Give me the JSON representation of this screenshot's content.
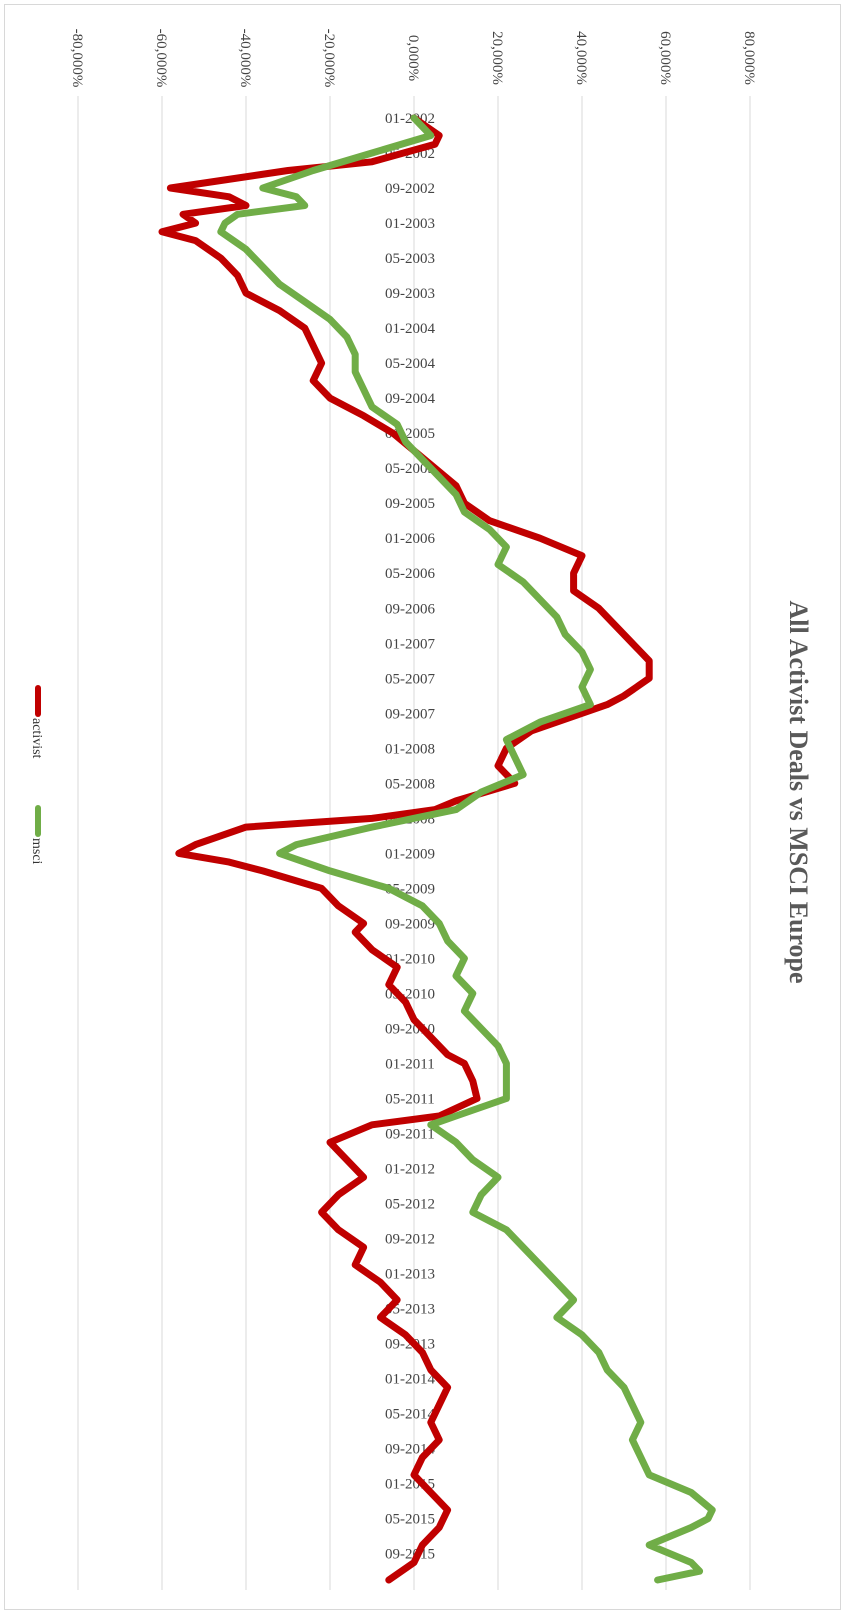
{
  "chart_data": {
    "type": "line",
    "title": "All Activist Deals vs MSCI Europe",
    "orientation": "rotated-90-clockwise",
    "value_axis": {
      "ticks": [
        "-80,000%",
        "-60,000%",
        "-40,000%",
        "-20,000%",
        "0,000%",
        "20,000%",
        "40,000%",
        "60,000%",
        "80,000%"
      ],
      "range": [
        -80,
        80
      ],
      "grid": true
    },
    "categories": [
      "01-2002",
      "05-2002",
      "09-2002",
      "01-2003",
      "05-2003",
      "09-2003",
      "01-2004",
      "05-2004",
      "09-2004",
      "01-2005",
      "05-2005",
      "09-2005",
      "01-2006",
      "05-2006",
      "09-2006",
      "01-2007",
      "05-2007",
      "09-2007",
      "01-2008",
      "05-2008",
      "09-2008",
      "01-2009",
      "05-2009",
      "09-2009",
      "01-2010",
      "05-2010",
      "09-2010",
      "01-2011",
      "05-2011",
      "09-2011",
      "01-2012",
      "05-2012",
      "09-2012",
      "01-2013",
      "05-2013",
      "09-2013",
      "01-2014",
      "05-2014",
      "09-2014",
      "01-2015",
      "05-2015",
      "09-2015"
    ],
    "x_range": [
      "01-2002",
      "12-2015"
    ],
    "legend": {
      "position": "bottom-center"
    },
    "series": [
      {
        "name": "activist",
        "color": "#c00000",
        "points": [
          [
            "01-2002",
            0
          ],
          [
            "03-2002",
            6
          ],
          [
            "04-2002",
            5
          ],
          [
            "06-2002",
            -10
          ],
          [
            "07-2002",
            -30
          ],
          [
            "09-2002",
            -58
          ],
          [
            "10-2002",
            -44
          ],
          [
            "11-2002",
            -40
          ],
          [
            "12-2002",
            -55
          ],
          [
            "01-2003",
            -52
          ],
          [
            "02-2003",
            -60
          ],
          [
            "03-2003",
            -52
          ],
          [
            "05-2003",
            -46
          ],
          [
            "07-2003",
            -42
          ],
          [
            "09-2003",
            -40
          ],
          [
            "11-2003",
            -32
          ],
          [
            "01-2004",
            -26
          ],
          [
            "03-2004",
            -24
          ],
          [
            "05-2004",
            -22
          ],
          [
            "07-2004",
            -24
          ],
          [
            "09-2004",
            -20
          ],
          [
            "11-2004",
            -12
          ],
          [
            "01-2005",
            -5
          ],
          [
            "03-2005",
            0
          ],
          [
            "05-2005",
            5
          ],
          [
            "07-2005",
            10
          ],
          [
            "09-2005",
            12
          ],
          [
            "11-2005",
            18
          ],
          [
            "01-2006",
            30
          ],
          [
            "03-2006",
            40
          ],
          [
            "05-2006",
            38
          ],
          [
            "07-2006",
            38
          ],
          [
            "09-2006",
            44
          ],
          [
            "11-2006",
            48
          ],
          [
            "01-2007",
            52
          ],
          [
            "03-2007",
            56
          ],
          [
            "05-2007",
            56
          ],
          [
            "07-2007",
            50
          ],
          [
            "08-2007",
            46
          ],
          [
            "09-2007",
            40
          ],
          [
            "11-2007",
            28
          ],
          [
            "01-2008",
            22
          ],
          [
            "03-2008",
            20
          ],
          [
            "05-2008",
            24
          ],
          [
            "07-2008",
            10
          ],
          [
            "08-2008",
            5
          ],
          [
            "09-2008",
            -10
          ],
          [
            "10-2008",
            -40
          ],
          [
            "12-2008",
            -52
          ],
          [
            "01-2009",
            -56
          ],
          [
            "02-2009",
            -44
          ],
          [
            "03-2009",
            -36
          ],
          [
            "05-2009",
            -22
          ],
          [
            "07-2009",
            -18
          ],
          [
            "09-2009",
            -12
          ],
          [
            "10-2009",
            -14
          ],
          [
            "12-2009",
            -10
          ],
          [
            "02-2010",
            -4
          ],
          [
            "04-2010",
            -6
          ],
          [
            "06-2010",
            -2
          ],
          [
            "08-2010",
            0
          ],
          [
            "10-2010",
            4
          ],
          [
            "12-2010",
            8
          ],
          [
            "01-2011",
            12
          ],
          [
            "03-2011",
            14
          ],
          [
            "05-2011",
            15
          ],
          [
            "07-2011",
            6
          ],
          [
            "08-2011",
            -10
          ],
          [
            "10-2011",
            -20
          ],
          [
            "12-2011",
            -16
          ],
          [
            "02-2012",
            -12
          ],
          [
            "04-2012",
            -18
          ],
          [
            "06-2012",
            -22
          ],
          [
            "08-2012",
            -18
          ],
          [
            "10-2012",
            -12
          ],
          [
            "12-2012",
            -14
          ],
          [
            "02-2013",
            -8
          ],
          [
            "04-2013",
            -4
          ],
          [
            "06-2013",
            -8
          ],
          [
            "08-2013",
            -2
          ],
          [
            "10-2013",
            2
          ],
          [
            "12-2013",
            4
          ],
          [
            "02-2014",
            8
          ],
          [
            "04-2014",
            6
          ],
          [
            "06-2014",
            4
          ],
          [
            "08-2014",
            6
          ],
          [
            "10-2014",
            2
          ],
          [
            "12-2014",
            0
          ],
          [
            "02-2015",
            4
          ],
          [
            "04-2015",
            8
          ],
          [
            "06-2015",
            6
          ],
          [
            "08-2015",
            2
          ],
          [
            "10-2015",
            0
          ],
          [
            "12-2015",
            -6
          ]
        ]
      },
      {
        "name": "msci",
        "color": "#70ad47",
        "points": [
          [
            "01-2002",
            0
          ],
          [
            "03-2002",
            4
          ],
          [
            "05-2002",
            -10
          ],
          [
            "07-2002",
            -24
          ],
          [
            "09-2002",
            -36
          ],
          [
            "10-2002",
            -28
          ],
          [
            "11-2002",
            -26
          ],
          [
            "12-2002",
            -42
          ],
          [
            "01-2003",
            -45
          ],
          [
            "02-2003",
            -46
          ],
          [
            "04-2003",
            -40
          ],
          [
            "06-2003",
            -36
          ],
          [
            "08-2003",
            -32
          ],
          [
            "10-2003",
            -26
          ],
          [
            "12-2003",
            -20
          ],
          [
            "02-2004",
            -16
          ],
          [
            "04-2004",
            -14
          ],
          [
            "06-2004",
            -14
          ],
          [
            "08-2004",
            -12
          ],
          [
            "10-2004",
            -10
          ],
          [
            "12-2004",
            -4
          ],
          [
            "02-2005",
            -2
          ],
          [
            "04-2005",
            2
          ],
          [
            "06-2005",
            6
          ],
          [
            "08-2005",
            10
          ],
          [
            "10-2005",
            12
          ],
          [
            "12-2005",
            18
          ],
          [
            "02-2006",
            22
          ],
          [
            "04-2006",
            20
          ],
          [
            "06-2006",
            26
          ],
          [
            "08-2006",
            30
          ],
          [
            "10-2006",
            34
          ],
          [
            "12-2006",
            36
          ],
          [
            "02-2007",
            40
          ],
          [
            "04-2007",
            42
          ],
          [
            "06-2007",
            40
          ],
          [
            "08-2007",
            42
          ],
          [
            "10-2007",
            30
          ],
          [
            "12-2007",
            22
          ],
          [
            "02-2008",
            24
          ],
          [
            "04-2008",
            26
          ],
          [
            "06-2008",
            16
          ],
          [
            "08-2008",
            10
          ],
          [
            "10-2008",
            -10
          ],
          [
            "12-2008",
            -28
          ],
          [
            "01-2009",
            -32
          ],
          [
            "03-2009",
            -20
          ],
          [
            "05-2009",
            -6
          ],
          [
            "07-2009",
            2
          ],
          [
            "09-2009",
            6
          ],
          [
            "11-2009",
            8
          ],
          [
            "01-2010",
            12
          ],
          [
            "03-2010",
            10
          ],
          [
            "05-2010",
            14
          ],
          [
            "07-2010",
            12
          ],
          [
            "09-2010",
            16
          ],
          [
            "11-2010",
            20
          ],
          [
            "01-2011",
            22
          ],
          [
            "03-2011",
            22
          ],
          [
            "05-2011",
            22
          ],
          [
            "07-2011",
            10
          ],
          [
            "08-2011",
            4
          ],
          [
            "10-2011",
            10
          ],
          [
            "12-2011",
            14
          ],
          [
            "02-2012",
            20
          ],
          [
            "04-2012",
            16
          ],
          [
            "06-2012",
            14
          ],
          [
            "08-2012",
            22
          ],
          [
            "10-2012",
            26
          ],
          [
            "12-2012",
            30
          ],
          [
            "02-2013",
            34
          ],
          [
            "04-2013",
            38
          ],
          [
            "06-2013",
            34
          ],
          [
            "08-2013",
            40
          ],
          [
            "10-2013",
            44
          ],
          [
            "12-2013",
            46
          ],
          [
            "02-2014",
            50
          ],
          [
            "04-2014",
            52
          ],
          [
            "06-2014",
            54
          ],
          [
            "08-2014",
            52
          ],
          [
            "10-2014",
            54
          ],
          [
            "12-2014",
            56
          ],
          [
            "02-2015",
            66
          ],
          [
            "04-2015",
            71
          ],
          [
            "05-2015",
            70
          ],
          [
            "06-2015",
            66
          ],
          [
            "08-2015",
            56
          ],
          [
            "10-2015",
            66
          ],
          [
            "11-2015",
            68
          ],
          [
            "12-2015",
            58
          ]
        ]
      }
    ]
  }
}
